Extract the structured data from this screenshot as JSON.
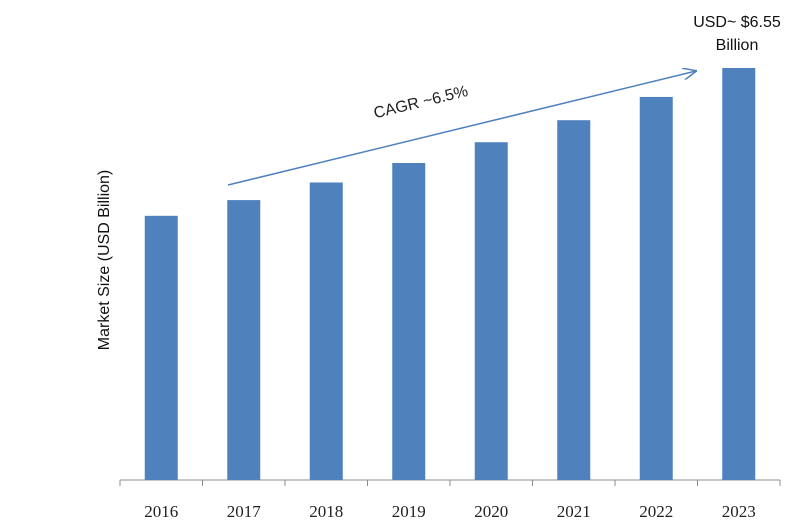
{
  "chart_data": {
    "type": "bar",
    "categories": [
      "2016",
      "2017",
      "2018",
      "2019",
      "2020",
      "2021",
      "2022",
      "2023"
    ],
    "values": [
      4.2,
      4.45,
      4.73,
      5.04,
      5.37,
      5.72,
      6.09,
      6.55
    ],
    "title": "",
    "xlabel": "",
    "ylabel": "Market Size (USD Billion)",
    "ylim": [
      0,
      6.55
    ],
    "grid": false,
    "legend": "none",
    "bar_color": "#4f81bd",
    "annotations": {
      "last_value_line1": "USD~ $6.55",
      "last_value_line2": "Billion",
      "cagr": "CAGR ~6.5%"
    }
  },
  "colors": {
    "bar": "#4f81bd",
    "arrow": "#4f81bd",
    "axis": "#8c8c8c"
  }
}
